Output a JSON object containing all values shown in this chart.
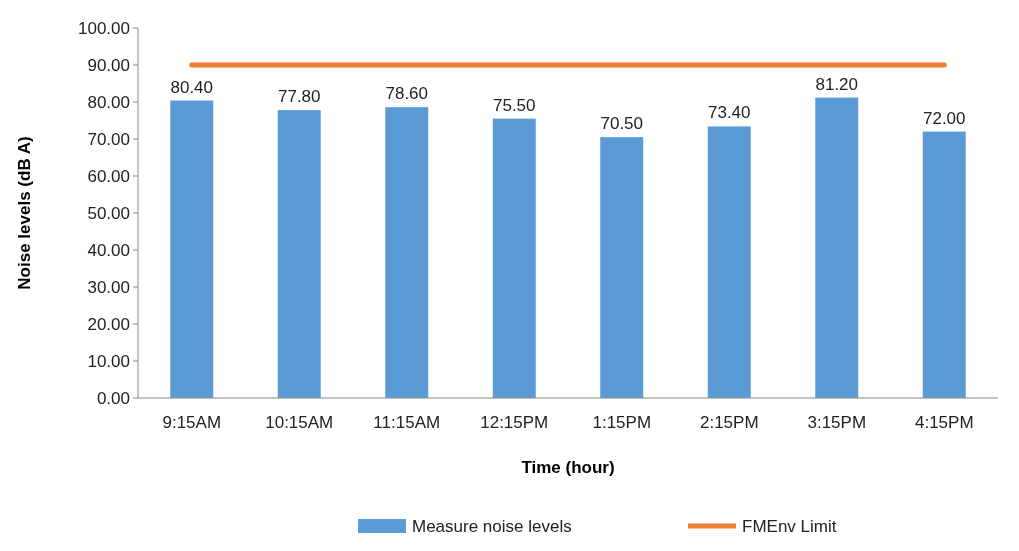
{
  "chart_data": {
    "type": "bar",
    "xlabel": "Time (hour)",
    "ylabel": "Noise levels (dB A)",
    "categories": [
      "9:15AM",
      "10:15AM",
      "11:15AM",
      "12:15PM",
      "1:15PM",
      "2:15PM",
      "3:15PM",
      "4:15PM"
    ],
    "series": [
      {
        "name": "Measure noise levels",
        "color": "#5b9bd5",
        "values": [
          80.4,
          77.8,
          78.6,
          75.5,
          70.5,
          73.4,
          81.2,
          72.0
        ],
        "value_labels": [
          "80.40",
          "77.80",
          "78.60",
          "75.50",
          "70.50",
          "73.40",
          "81.20",
          "72.00"
        ]
      },
      {
        "name": "FMEnv Limit",
        "type": "line",
        "color": "#ed7d31",
        "values": [
          90,
          90,
          90,
          90,
          90,
          90,
          90,
          90
        ]
      }
    ],
    "ylim": [
      0,
      100
    ],
    "yticks": [
      {
        "value": 0,
        "label": "0.00"
      },
      {
        "value": 10,
        "label": "10.00"
      },
      {
        "value": 20,
        "label": "20.00"
      },
      {
        "value": 30,
        "label": "30.00"
      },
      {
        "value": 40,
        "label": "40.00"
      },
      {
        "value": 50,
        "label": "50.00"
      },
      {
        "value": 60,
        "label": "60.00"
      },
      {
        "value": 70,
        "label": "70.00"
      },
      {
        "value": 80,
        "label": "80.00"
      },
      {
        "value": 90,
        "label": "90.00"
      },
      {
        "value": 100,
        "label": "100.00"
      }
    ],
    "grid": false,
    "legend": "bottom"
  }
}
